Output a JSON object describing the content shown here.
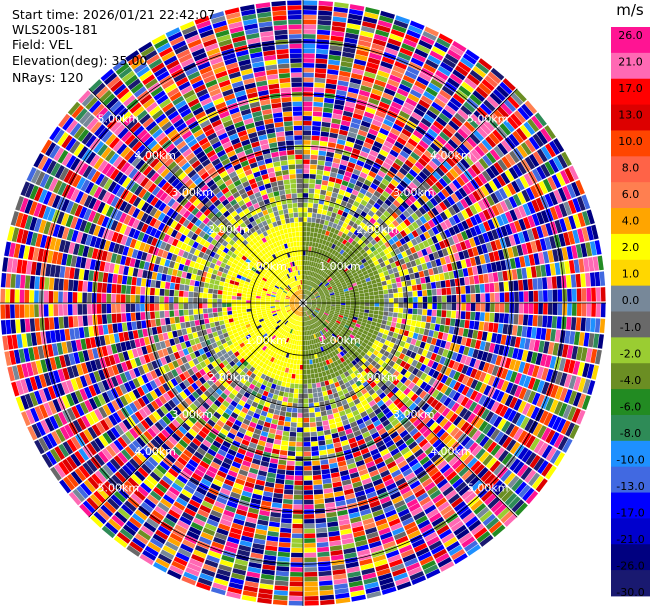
{
  "info": {
    "start_time": "Start time: 2026/01/21 22:42:07",
    "station": "WLS200s-181",
    "field": "Field: VEL",
    "elevation": "Elevation(deg): 35.00",
    "nrays": "NRays: 120"
  },
  "chart_data": {
    "type": "heatmap",
    "projection": "polar-ppi",
    "field": "VEL",
    "units": "m/s",
    "elevation_deg": 35.0,
    "n_rays": 120,
    "range_rings_km": [
      1.0,
      2.0,
      3.0,
      4.0,
      5.0
    ],
    "range_ring_labels": [
      "1.00km",
      "2.00km",
      "3.00km",
      "4.00km",
      "5.00km"
    ],
    "max_range_km": 5.8,
    "value_range": [
      -30.0,
      30.0
    ],
    "colorbar": {
      "unit_label": "m/s",
      "tick_labels": [
        "26.0",
        "21.0",
        "17.0",
        "13.0",
        "10.0",
        "8.0",
        "6.0",
        "4.0",
        "2.0",
        "1.0",
        "0.0",
        "-1.0",
        "-2.0",
        "-4.0",
        "-6.0",
        "-8.0",
        "-10.0",
        "-13.0",
        "-17.0",
        "-21.0",
        "-26.0",
        "-30.0"
      ],
      "bins": [
        {
          "range": [
            26,
            30
          ],
          "color": "#ff1493"
        },
        {
          "range": [
            21,
            26
          ],
          "color": "#ff69b4"
        },
        {
          "range": [
            17,
            21
          ],
          "color": "#ff0000"
        },
        {
          "range": [
            13,
            17
          ],
          "color": "#dd0000"
        },
        {
          "range": [
            10,
            13
          ],
          "color": "#ff4500"
        },
        {
          "range": [
            8,
            10
          ],
          "color": "#ff6347"
        },
        {
          "range": [
            6,
            8
          ],
          "color": "#ff7f50"
        },
        {
          "range": [
            4,
            6
          ],
          "color": "#ffa500"
        },
        {
          "range": [
            2,
            4
          ],
          "color": "#ffff00"
        },
        {
          "range": [
            1,
            2
          ],
          "color": "#ffd700"
        },
        {
          "range": [
            0,
            1
          ],
          "color": "#778899"
        },
        {
          "range": [
            -1,
            0
          ],
          "color": "#696969"
        },
        {
          "range": [
            -2,
            -1
          ],
          "color": "#9acd32"
        },
        {
          "range": [
            -4,
            -2
          ],
          "color": "#6b8e23"
        },
        {
          "range": [
            -6,
            -4
          ],
          "color": "#228b22"
        },
        {
          "range": [
            -8,
            -6
          ],
          "color": "#2e8b57"
        },
        {
          "range": [
            -10,
            -8
          ],
          "color": "#1e90ff"
        },
        {
          "range": [
            -13,
            -10
          ],
          "color": "#4169e1"
        },
        {
          "range": [
            -17,
            -13
          ],
          "color": "#0000ff"
        },
        {
          "range": [
            -21,
            -17
          ],
          "color": "#0000cd"
        },
        {
          "range": [
            -26,
            -21
          ],
          "color": "#000080"
        },
        {
          "range": [
            -30,
            -26
          ],
          "color": "#191970"
        }
      ]
    },
    "approximate_field": {
      "near_range_km": [
        0,
        1.5
      ],
      "near_description_values": {
        "west_half_m_s": 2.5,
        "east_half_m_s": -2.5,
        "center_m_s": 5.0
      },
      "mid_range_km": [
        1.5,
        3.0
      ],
      "mid_mixed_values_m_s": [
        3.0,
        -1.5,
        0.5,
        -0.5
      ],
      "far_range_km": [
        3.0,
        5.8
      ],
      "far_noise_min_m_s": -30,
      "far_noise_max_m_s": 30
    }
  }
}
